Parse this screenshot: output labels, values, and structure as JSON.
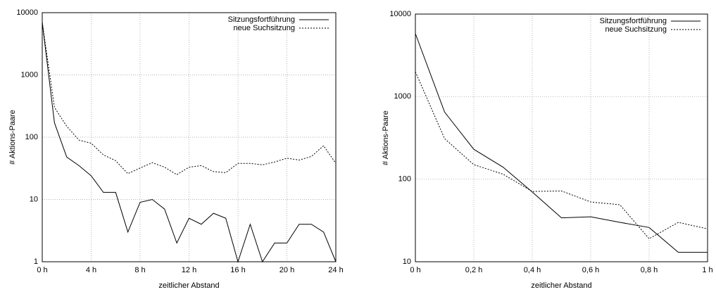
{
  "chart_data": [
    {
      "type": "line",
      "log_y": true,
      "grid": true,
      "legend": "top-right",
      "xlabel": "zeitlicher Abstand",
      "ylabel": "# Aktions-Paare",
      "x": [
        0,
        1,
        2,
        3,
        4,
        5,
        6,
        7,
        8,
        9,
        10,
        11,
        12,
        13,
        14,
        15,
        16,
        17,
        18,
        19,
        20,
        21,
        22,
        23,
        24
      ],
      "xlim": [
        0,
        24
      ],
      "xticks": [
        {
          "value": 0,
          "label": "0 h"
        },
        {
          "value": 4,
          "label": "4 h"
        },
        {
          "value": 8,
          "label": "8 h"
        },
        {
          "value": 12,
          "label": "12 h"
        },
        {
          "value": 16,
          "label": "16 h"
        },
        {
          "value": 20,
          "label": "20 h"
        },
        {
          "value": 24,
          "label": "24 h"
        }
      ],
      "ylim": [
        1,
        10000
      ],
      "yticks": [
        1,
        10,
        100,
        1000,
        10000
      ],
      "series": [
        {
          "name": "Sitzungsfortführung",
          "color": "#000000",
          "dashed": false,
          "values": [
            7000,
            170,
            48,
            35,
            24,
            13,
            13,
            3,
            9,
            10,
            7,
            2,
            5,
            4,
            6,
            5,
            1,
            4,
            1,
            2,
            2,
            4,
            4,
            3,
            1
          ]
        },
        {
          "name": "neue Suchsitzung",
          "color": "#000000",
          "dashed": true,
          "values": [
            7000,
            300,
            150,
            90,
            80,
            52,
            42,
            26,
            32,
            39,
            33,
            25,
            33,
            35,
            28,
            27,
            38,
            38,
            36,
            40,
            46,
            43,
            49,
            73,
            38
          ]
        }
      ]
    },
    {
      "type": "line",
      "log_y": true,
      "grid": true,
      "legend": "top-right",
      "xlabel": "zeitlicher Abstand",
      "ylabel": "# Aktions-Paare",
      "x": [
        0,
        0.1,
        0.2,
        0.3,
        0.4,
        0.5,
        0.6,
        0.7,
        0.8,
        0.9,
        1
      ],
      "xlim": [
        0,
        1
      ],
      "xticks": [
        {
          "value": 0,
          "label": "0 h"
        },
        {
          "value": 0.2,
          "label": "0,2 h"
        },
        {
          "value": 0.4,
          "label": "0,4 h"
        },
        {
          "value": 0.6,
          "label": "0,6 h"
        },
        {
          "value": 0.8,
          "label": "0,8 h"
        },
        {
          "value": 1,
          "label": "1 h"
        }
      ],
      "ylim": [
        10,
        10000
      ],
      "yticks": [
        10,
        100,
        1000,
        10000
      ],
      "series": [
        {
          "name": "Sitzungsfortführung",
          "color": "#000000",
          "dashed": false,
          "values": [
            5800,
            650,
            230,
            140,
            70,
            34,
            35,
            30,
            26,
            13,
            13
          ]
        },
        {
          "name": "neue Suchsitzung",
          "color": "#000000",
          "dashed": true,
          "values": [
            2000,
            310,
            150,
            115,
            71,
            72,
            53,
            49,
            19,
            30,
            25
          ]
        }
      ]
    }
  ]
}
